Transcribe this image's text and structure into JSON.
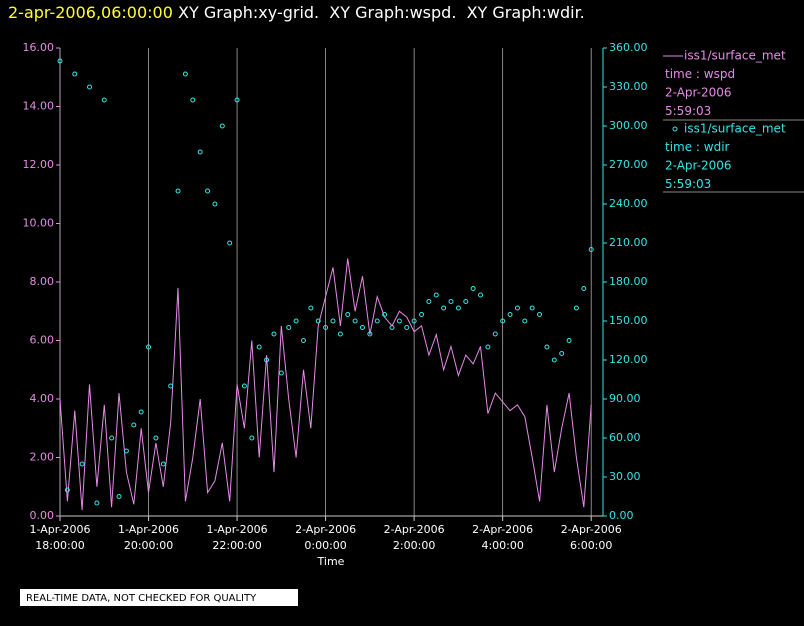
{
  "header": {
    "timestamp": "2-apr-2006,06:00:00",
    "graphs": " XY Graph:xy-grid.  XY Graph:wspd.  XY Graph:wdir."
  },
  "footer": "REAL-TIME DATA, NOT CHECKED FOR QUALITY",
  "chart_data": {
    "type": "line-scatter",
    "xlabel": "Time",
    "xlim": [
      "2006-04-01T18:00",
      "2006-04-02T06:16"
    ],
    "xticks": [
      {
        "value": "2006-04-01T18:00",
        "label": "1-Apr-2006 18:00:00"
      },
      {
        "value": "2006-04-01T20:00",
        "label": "1-Apr-2006 20:00:00"
      },
      {
        "value": "2006-04-01T22:00",
        "label": "1-Apr-2006 22:00:00"
      },
      {
        "value": "2006-04-02T00:00",
        "label": "2-Apr-2006 0:00:00"
      },
      {
        "value": "2006-04-02T02:00",
        "label": "2-Apr-2006 2:00:00"
      },
      {
        "value": "2006-04-02T04:00",
        "label": "2-Apr-2006 4:00:00"
      },
      {
        "value": "2006-04-02T06:00",
        "label": "2-Apr-2006 6:00:00"
      }
    ],
    "ylim": [
      0,
      16
    ],
    "yticks": [
      {
        "value": 0,
        "label": "0.00"
      },
      {
        "value": 2,
        "label": "2.00"
      },
      {
        "value": 4,
        "label": "4.00"
      },
      {
        "value": 6,
        "label": "6.00"
      },
      {
        "value": 8,
        "label": "8.00"
      },
      {
        "value": 10,
        "label": "10.00"
      },
      {
        "value": 12,
        "label": "12.00"
      },
      {
        "value": 14,
        "label": "14.00"
      },
      {
        "value": 16,
        "label": "16.00"
      }
    ],
    "y2lim": [
      0,
      360
    ],
    "y2ticks": [
      {
        "value": 0,
        "label": "0.00"
      },
      {
        "value": 30,
        "label": "30.00"
      },
      {
        "value": 60,
        "label": "60.00"
      },
      {
        "value": 90,
        "label": "90.00"
      },
      {
        "value": 120,
        "label": "120.00"
      },
      {
        "value": 150,
        "label": "150.00"
      },
      {
        "value": 180,
        "label": "180.00"
      },
      {
        "value": 210,
        "label": "210.00"
      },
      {
        "value": 240,
        "label": "240.00"
      },
      {
        "value": 270,
        "label": "270.00"
      },
      {
        "value": 300,
        "label": "300.00"
      },
      {
        "value": 330,
        "label": "330.00"
      },
      {
        "value": 360,
        "label": "360.00"
      }
    ],
    "grid": true,
    "x": [
      "2006-04-01T18:00",
      "2006-04-01T18:10",
      "2006-04-01T18:20",
      "2006-04-01T18:30",
      "2006-04-01T18:40",
      "2006-04-01T18:50",
      "2006-04-01T19:00",
      "2006-04-01T19:10",
      "2006-04-01T19:20",
      "2006-04-01T19:30",
      "2006-04-01T19:40",
      "2006-04-01T19:50",
      "2006-04-01T20:00",
      "2006-04-01T20:10",
      "2006-04-01T20:20",
      "2006-04-01T20:30",
      "2006-04-01T20:40",
      "2006-04-01T20:50",
      "2006-04-01T21:00",
      "2006-04-01T21:10",
      "2006-04-01T21:20",
      "2006-04-01T21:30",
      "2006-04-01T21:40",
      "2006-04-01T21:50",
      "2006-04-01T22:00",
      "2006-04-01T22:10",
      "2006-04-01T22:20",
      "2006-04-01T22:30",
      "2006-04-01T22:40",
      "2006-04-01T22:50",
      "2006-04-01T23:00",
      "2006-04-01T23:10",
      "2006-04-01T23:20",
      "2006-04-01T23:30",
      "2006-04-01T23:40",
      "2006-04-01T23:50",
      "2006-04-02T00:00",
      "2006-04-02T00:10",
      "2006-04-02T00:20",
      "2006-04-02T00:30",
      "2006-04-02T00:40",
      "2006-04-02T00:50",
      "2006-04-02T01:00",
      "2006-04-02T01:10",
      "2006-04-02T01:20",
      "2006-04-02T01:30",
      "2006-04-02T01:40",
      "2006-04-02T01:50",
      "2006-04-02T02:00",
      "2006-04-02T02:10",
      "2006-04-02T02:20",
      "2006-04-02T02:30",
      "2006-04-02T02:40",
      "2006-04-02T02:50",
      "2006-04-02T03:00",
      "2006-04-02T03:10",
      "2006-04-02T03:20",
      "2006-04-02T03:30",
      "2006-04-02T03:40",
      "2006-04-02T03:50",
      "2006-04-02T04:00",
      "2006-04-02T04:10",
      "2006-04-02T04:20",
      "2006-04-02T04:30",
      "2006-04-02T04:40",
      "2006-04-02T04:50",
      "2006-04-02T05:00",
      "2006-04-02T05:10",
      "2006-04-02T05:20",
      "2006-04-02T05:30",
      "2006-04-02T05:40",
      "2006-04-02T05:50",
      "2006-04-02T06:00"
    ],
    "series": [
      {
        "name": "iss1/surface_met",
        "variable": "time : wspd",
        "date": "2-Apr-2006",
        "time": "5:59:03",
        "color": "#e58be5",
        "style": "line",
        "values": [
          4.0,
          0.5,
          3.6,
          0.2,
          4.5,
          1.0,
          3.8,
          0.3,
          4.2,
          1.5,
          0.4,
          3.0,
          0.8,
          2.5,
          1.0,
          3.2,
          7.8,
          0.5,
          2.0,
          4.0,
          0.8,
          1.2,
          2.5,
          0.5,
          4.5,
          3.0,
          6.0,
          2.0,
          5.5,
          1.5,
          6.5,
          4.0,
          2.0,
          5.0,
          3.0,
          6.5,
          7.5,
          8.5,
          6.5,
          8.8,
          7.0,
          8.2,
          6.2,
          7.5,
          6.8,
          6.5,
          7.0,
          6.8,
          6.3,
          6.5,
          5.5,
          6.2,
          5.0,
          5.8,
          4.8,
          5.5,
          5.2,
          5.8,
          3.5,
          4.2,
          3.9,
          3.6,
          3.8,
          3.4,
          2.0,
          0.5,
          3.8,
          1.5,
          3.0,
          4.2,
          2.0,
          0.3,
          3.8
        ]
      },
      {
        "name": "iss1/surface_met",
        "variable": "time : wdir",
        "date": "2-Apr-2006",
        "time": "5:59:03",
        "color": "#33e5e5",
        "style": "markers",
        "axis": "y2",
        "values": [
          350,
          20,
          340,
          40,
          330,
          10,
          320,
          60,
          15,
          50,
          70,
          80,
          130,
          60,
          40,
          100,
          250,
          340,
          320,
          280,
          250,
          240,
          300,
          210,
          320,
          100,
          60,
          130,
          120,
          140,
          110,
          145,
          150,
          135,
          160,
          150,
          145,
          150,
          140,
          155,
          150,
          145,
          140,
          150,
          155,
          145,
          150,
          145,
          150,
          155,
          165,
          170,
          160,
          165,
          160,
          165,
          175,
          170,
          130,
          140,
          150,
          155,
          160,
          150,
          160,
          155,
          130,
          120,
          125,
          135,
          160,
          175,
          205
        ]
      }
    ]
  }
}
